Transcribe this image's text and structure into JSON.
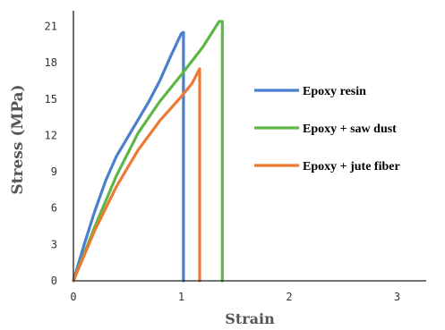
{
  "chart_data": {
    "type": "line",
    "title": "",
    "xlabel": "Strain",
    "ylabel": "Stress (MPa)",
    "xlim": [
      0,
      3.25
    ],
    "ylim": [
      0,
      22.5
    ],
    "xticks": [
      "0",
      "1",
      "2",
      "3"
    ],
    "yticks": [
      "0",
      "3",
      "6",
      "9",
      "12",
      "15",
      "18",
      "21"
    ],
    "grid": false,
    "legend_position": "right",
    "series": [
      {
        "name": "Epoxy resin",
        "color": "#4a7fd0",
        "points": [
          [
            0,
            0
          ],
          [
            0.1,
            3
          ],
          [
            0.2,
            5.8
          ],
          [
            0.3,
            8.3
          ],
          [
            0.4,
            10.3
          ],
          [
            0.5,
            11.8
          ],
          [
            0.6,
            13.3
          ],
          [
            0.7,
            14.8
          ],
          [
            0.8,
            16.5
          ],
          [
            0.9,
            18.5
          ],
          [
            1.0,
            20.4
          ],
          [
            1.02,
            20.5
          ],
          [
            1.02,
            0
          ]
        ]
      },
      {
        "name": "Epoxy + saw dust",
        "color": "#5cb844",
        "points": [
          [
            0,
            0
          ],
          [
            0.2,
            4.5
          ],
          [
            0.4,
            8.7
          ],
          [
            0.6,
            12.2
          ],
          [
            0.8,
            14.8
          ],
          [
            1.0,
            17.0
          ],
          [
            1.2,
            19.3
          ],
          [
            1.35,
            21.4
          ],
          [
            1.38,
            21.4
          ],
          [
            1.38,
            0
          ]
        ]
      },
      {
        "name": "Epoxy + jute fiber",
        "color": "#ec7a35",
        "points": [
          [
            0,
            0
          ],
          [
            0.2,
            4.2
          ],
          [
            0.4,
            7.8
          ],
          [
            0.6,
            10.8
          ],
          [
            0.8,
            13.2
          ],
          [
            1.0,
            15.2
          ],
          [
            1.1,
            16.3
          ],
          [
            1.17,
            17.5
          ],
          [
            1.17,
            0
          ]
        ]
      }
    ]
  }
}
